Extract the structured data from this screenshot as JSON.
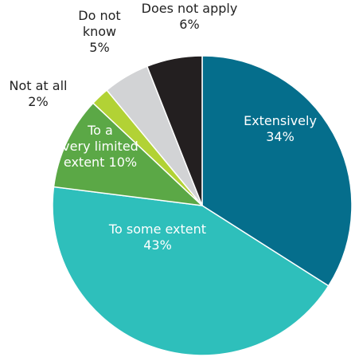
{
  "chart_data": {
    "type": "pie",
    "title": "",
    "slices": [
      {
        "label_lines": [
          "Extensively"
        ],
        "value": 34,
        "value_text": "34%",
        "color": "#056e8c",
        "label_color": "#ffffff"
      },
      {
        "label_lines": [
          "To some extent"
        ],
        "value": 43,
        "value_text": "43%",
        "color": "#2ebfbb",
        "label_color": "#ffffff"
      },
      {
        "label_lines": [
          "To a",
          "very limited",
          "extent 10%"
        ],
        "value": 10,
        "value_text": "",
        "color": "#5ba846",
        "label_color": "#ffffff"
      },
      {
        "label_lines": [
          "Not at all"
        ],
        "value": 2,
        "value_text": "2%",
        "color": "#b2d235",
        "label_color": "#222222"
      },
      {
        "label_lines": [
          "Do not",
          "know"
        ],
        "value": 5,
        "value_text": "5%",
        "color": "#d2d3d5",
        "label_color": "#222222"
      },
      {
        "label_lines": [
          "Does not apply"
        ],
        "value": 6,
        "value_text": "6%",
        "color": "#231f20",
        "label_color": "#222222"
      }
    ]
  }
}
